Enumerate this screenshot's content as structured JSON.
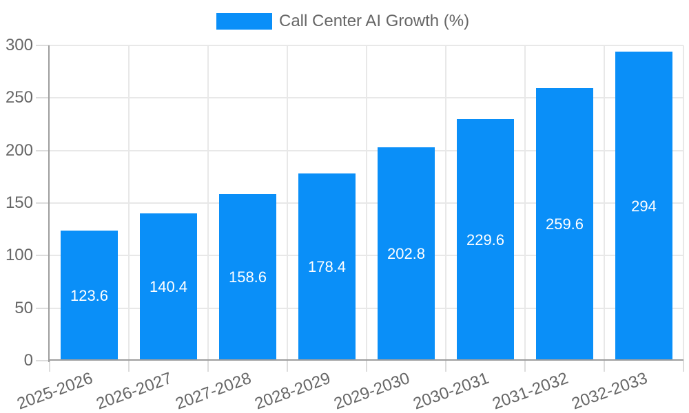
{
  "legend": {
    "label": "Call Center AI Growth (%)",
    "swatch_color": "#0a8ff8"
  },
  "chart_data": {
    "type": "bar",
    "title": "Call Center AI Growth (%)",
    "categories": [
      "2025-2026",
      "2026-2027",
      "2027-2028",
      "2028-2029",
      "2029-2030",
      "2030-2031",
      "2031-2032",
      "2032-2033"
    ],
    "values": [
      123.6,
      140.4,
      158.6,
      178.4,
      202.8,
      229.6,
      259.6,
      294
    ],
    "value_labels": [
      "123.6",
      "140.4",
      "158.6",
      "178.4",
      "202.8",
      "229.6",
      "259.6",
      "294"
    ],
    "yticks": [
      0,
      50,
      100,
      150,
      200,
      250,
      300
    ],
    "ylim": [
      0,
      300
    ],
    "xlabel": "",
    "ylabel": "",
    "grid": true,
    "legend_position": "top-center",
    "bar_color": "#0a8ff8",
    "value_label_color": "#ffffff",
    "axis_text_color": "#666666",
    "grid_color": "#e8e8e8",
    "axis_line_color": "#9e9e9e"
  }
}
